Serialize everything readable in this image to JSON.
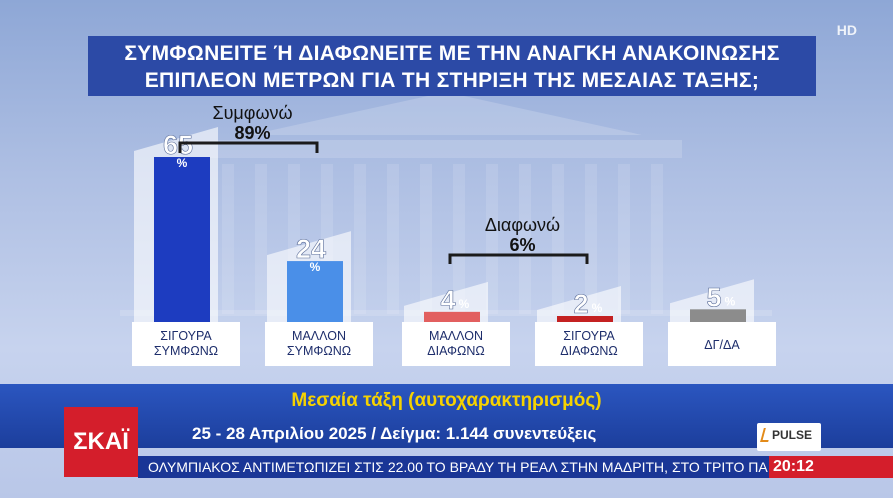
{
  "question": {
    "line1": "ΣΥΜΦΩΝΕΙΤΕ Ή ΔΙΑΦΩΝΕΙΤΕ ΜΕ ΤΗΝ ΑΝΑΓΚΗ ΑΝΑΚΟΙΝΩΣΗΣ",
    "line2": "ΕΠΙΠΛΕΟΝ ΜΕΤΡΩΝ ΓΙΑ ΤΗ ΣΤΗΡΙΞΗ ΤΗΣ ΜΕΣΑΙΑΣ ΤΑΞΗΣ;"
  },
  "hd_tag": "HD",
  "chart_data": {
    "type": "bar",
    "title": "ΣΥΜΦΩΝΕΙΤΕ Ή ΔΙΑΦΩΝΕΙΤΕ ΜΕ ΤΗΝ ΑΝΑΓΚΗ ΑΝΑΚΟΙΝΩΣΗΣ ΕΠΙΠΛΕΟΝ ΜΕΤΡΩΝ ΓΙΑ ΤΗ ΣΤΗΡΙΞΗ ΤΗΣ ΜΕΣΑΙΑΣ ΤΑΞΗΣ;",
    "unit": "%",
    "categories": [
      [
        "ΣΙΓΟΥΡΑ",
        "ΣΥΜΦΩΝΩ"
      ],
      [
        "ΜΑΛΛΟΝ",
        "ΣΥΜΦΩΝΩ"
      ],
      [
        "ΜΑΛΛΟΝ",
        "ΔΙΑΦΩΝΩ"
      ],
      [
        "ΣΙΓΟΥΡΑ",
        "ΔΙΑΦΩΝΩ"
      ],
      [
        "ΔΓ/ΔΑ"
      ]
    ],
    "values": [
      65,
      24,
      4,
      2,
      5
    ],
    "colors": [
      "#1d3cc0",
      "#4a8fe8",
      "#e25f5f",
      "#c42121",
      "#8c8c8c"
    ],
    "ylim": [
      0,
      65
    ],
    "groups": [
      {
        "label": "Συμφωνώ",
        "total": "89%",
        "from": 0,
        "to": 1
      },
      {
        "label": "Διαφωνώ",
        "total": "6%",
        "from": 2,
        "to": 3
      }
    ]
  },
  "subtitle": "Μεσαία τάξη (αυτοχαρακτηρισμός)",
  "subline": "25 - 28 Απριλίου 2025 / Δείγμα: 1.144 συνεντεύξεις",
  "logo": "ΣΚΑΪ",
  "pulse": "PULSE",
  "ticker": "ΟΛΥΜΠΙΑΚΟΣ ΑΝΤΙΜΕΤΩΠΙΖΕΙ ΣΤΙΣ 22.00 ΤΟ ΒΡΑΔΥ ΤΗ ΡΕΑΛ ΣΤΗΝ ΜΑΔΡΙΤΗ, ΣΤΟ ΤΡΙΤΟ ΠΑΙΧ",
  "clock": "20:12"
}
